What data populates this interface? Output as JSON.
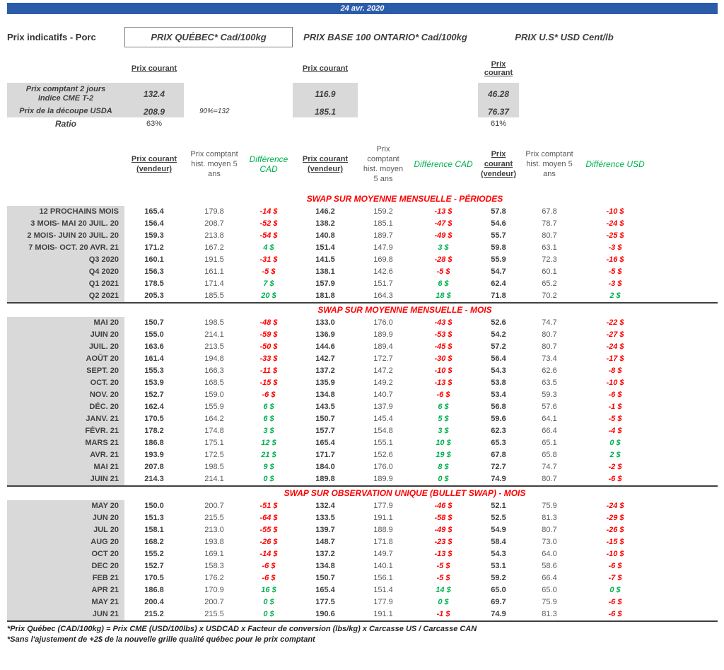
{
  "header": {
    "date": "24 avr. 2020",
    "product_label": "Prix indicatifs - Porc",
    "quebec_title": "PRIX QUÉBEC* Cad/100kg",
    "ontario_title": "PRIX BASE 100 ONTARIO* Cad/100kg",
    "us_title": "PRIX U.S* USD Cent/lb",
    "prix_courant_label": "Prix courant"
  },
  "spot": {
    "row1_label": "Prix comptant 2 jours\nIndice CME T-2",
    "row1": {
      "quebec": "132.4",
      "ontario": "116.9",
      "us": "46.28"
    },
    "row2_label": "Prix de la découpe USDA",
    "row2": {
      "quebec": "208.9",
      "note": "90%=132",
      "ontario": "185.1",
      "us": "76.37"
    },
    "ratio_label": "Ratio",
    "ratio": {
      "quebec": "63%",
      "us": "61%"
    }
  },
  "column_headers": {
    "current": "Prix courant (vendeur)",
    "hist": "Prix comptant hist. moyen 5 ans",
    "diff_cad": "Différence CAD",
    "diff_usd": "Différence USD"
  },
  "colors": {
    "banner_blue": "#2A5CAA",
    "negative_red": "#FF0000",
    "positive_green": "#00B050",
    "label_gray": "#D9D9D9"
  },
  "swap_sections": [
    {
      "title": "SWAP SUR MOYENNE MENSUELLE - PÉRIODES",
      "rows": [
        [
          "12 PROCHAINS MOIS",
          "165.4",
          "179.8",
          "-14 $",
          "146.2",
          "159.2",
          "-13 $",
          "57.8",
          "67.8",
          "-10 $"
        ],
        [
          "3 MOIS- MAI 20 JUIL. 20",
          "156.4",
          "208.7",
          "-52 $",
          "138.2",
          "185.1",
          "-47 $",
          "54.6",
          "78.7",
          "-24 $"
        ],
        [
          "2 MOIS- JUIN 20 JUIL. 20",
          "159.3",
          "213.8",
          "-54 $",
          "140.8",
          "189.7",
          "-49 $",
          "55.7",
          "80.7",
          "-25 $"
        ],
        [
          "7 MOIS- OCT. 20 AVR. 21",
          "171.2",
          "167.2",
          "4 $",
          "151.4",
          "147.9",
          "3 $",
          "59.8",
          "63.1",
          "-3 $"
        ],
        [
          "Q3 2020",
          "160.1",
          "191.5",
          "-31 $",
          "141.5",
          "169.8",
          "-28 $",
          "55.9",
          "72.3",
          "-16 $"
        ],
        [
          "Q4 2020",
          "156.3",
          "161.1",
          "-5 $",
          "138.1",
          "142.6",
          "-5 $",
          "54.7",
          "60.1",
          "-5 $"
        ],
        [
          "Q1 2021",
          "178.5",
          "171.4",
          "7 $",
          "157.9",
          "151.7",
          "6 $",
          "62.4",
          "65.2",
          "-3 $"
        ],
        [
          "Q2 2021",
          "205.3",
          "185.5",
          "20 $",
          "181.8",
          "164.3",
          "18 $",
          "71.8",
          "70.2",
          "2 $"
        ]
      ]
    },
    {
      "title": "SWAP SUR MOYENNE MENSUELLE - MOIS",
      "rows": [
        [
          "MAI 20",
          "150.7",
          "198.5",
          "-48 $",
          "133.0",
          "176.0",
          "-43 $",
          "52.6",
          "74.7",
          "-22 $"
        ],
        [
          "JUIN 20",
          "155.0",
          "214.1",
          "-59 $",
          "136.9",
          "189.9",
          "-53 $",
          "54.2",
          "80.7",
          "-27 $"
        ],
        [
          "JUIL. 20",
          "163.6",
          "213.5",
          "-50 $",
          "144.6",
          "189.4",
          "-45 $",
          "57.2",
          "80.7",
          "-24 $"
        ],
        [
          "AOÛT 20",
          "161.4",
          "194.8",
          "-33 $",
          "142.7",
          "172.7",
          "-30 $",
          "56.4",
          "73.4",
          "-17 $"
        ],
        [
          "SEPT. 20",
          "155.3",
          "166.3",
          "-11 $",
          "137.2",
          "147.2",
          "-10 $",
          "54.3",
          "62.6",
          "-8 $"
        ],
        [
          "OCT. 20",
          "153.9",
          "168.5",
          "-15 $",
          "135.9",
          "149.2",
          "-13 $",
          "53.8",
          "63.5",
          "-10 $"
        ],
        [
          "NOV. 20",
          "152.7",
          "159.0",
          "-6 $",
          "134.8",
          "140.7",
          "-6 $",
          "53.4",
          "59.3",
          "-6 $"
        ],
        [
          "DÉC. 20",
          "162.4",
          "155.9",
          "6 $",
          "143.5",
          "137.9",
          "6 $",
          "56.8",
          "57.6",
          "-1 $"
        ],
        [
          "JANV. 21",
          "170.5",
          "164.2",
          "6 $",
          "150.7",
          "145.4",
          "5 $",
          "59.6",
          "64.1",
          "-5 $"
        ],
        [
          "FÉVR. 21",
          "178.2",
          "174.8",
          "3 $",
          "157.7",
          "154.8",
          "3 $",
          "62.3",
          "66.4",
          "-4 $"
        ],
        [
          "MARS 21",
          "186.8",
          "175.1",
          "12 $",
          "165.4",
          "155.1",
          "10 $",
          "65.3",
          "65.1",
          "0 $"
        ],
        [
          "AVR. 21",
          "193.9",
          "172.5",
          "21 $",
          "171.7",
          "152.6",
          "19 $",
          "67.8",
          "65.8",
          "2 $"
        ],
        [
          "MAI 21",
          "207.8",
          "198.5",
          "9 $",
          "184.0",
          "176.0",
          "8 $",
          "72.7",
          "74.7",
          "-2 $"
        ],
        [
          "JUIN 21",
          "214.3",
          "214.1",
          "0 $",
          "189.8",
          "189.9",
          "0 $",
          "74.9",
          "80.7",
          "-6 $"
        ]
      ]
    },
    {
      "title": "SWAP SUR OBSERVATION UNIQUE (BULLET SWAP) - MOIS",
      "rows": [
        [
          "MAY 20",
          "150.0",
          "200.7",
          "-51 $",
          "132.4",
          "177.9",
          "-46 $",
          "52.1",
          "75.9",
          "-24 $"
        ],
        [
          "JUN 20",
          "151.3",
          "215.5",
          "-64 $",
          "133.5",
          "191.1",
          "-58 $",
          "52.5",
          "81.3",
          "-29 $"
        ],
        [
          "JUL 20",
          "158.1",
          "213.0",
          "-55 $",
          "139.7",
          "188.9",
          "-49 $",
          "54.9",
          "80.7",
          "-26 $"
        ],
        [
          "AUG 20",
          "168.2",
          "193.8",
          "-26 $",
          "148.7",
          "171.8",
          "-23 $",
          "58.4",
          "73.0",
          "-15 $"
        ],
        [
          "OCT 20",
          "155.2",
          "169.1",
          "-14 $",
          "137.2",
          "149.7",
          "-13 $",
          "54.3",
          "64.0",
          "-10 $"
        ],
        [
          "DEC 20",
          "152.7",
          "158.3",
          "-6 $",
          "134.8",
          "140.1",
          "-5 $",
          "53.1",
          "58.6",
          "-6 $"
        ],
        [
          "FEB 21",
          "170.5",
          "176.2",
          "-6 $",
          "150.7",
          "156.1",
          "-5 $",
          "59.2",
          "66.4",
          "-7 $"
        ],
        [
          "APR 21",
          "186.8",
          "170.9",
          "16 $",
          "165.4",
          "151.4",
          "14 $",
          "65.0",
          "65.0",
          "0 $"
        ],
        [
          "MAY 21",
          "200.4",
          "200.7",
          "0 $",
          "177.5",
          "177.9",
          "0 $",
          "69.7",
          "75.9",
          "-6 $"
        ],
        [
          "JUN 21",
          "215.2",
          "215.5",
          "0 $",
          "190.6",
          "191.1",
          "-1 $",
          "74.9",
          "81.3",
          "-6 $"
        ]
      ]
    }
  ],
  "footnotes": [
    "*Prix Québec (CAD/100kg) = Prix CME (USD/100lbs) x USDCAD x Facteur de conversion (lbs/kg) x Carcasse US / Carcasse CAN",
    "*Sans l'ajustement de +2$ de la nouvelle grille qualité québec pour le prix comptant"
  ]
}
